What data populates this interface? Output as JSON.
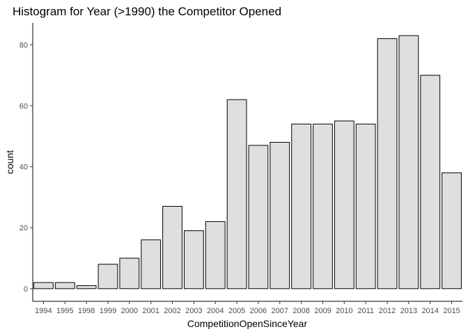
{
  "chart_data": {
    "type": "bar",
    "title": "Histogram for Year (>1990) the Competitor Opened",
    "xlabel": "CompetitionOpenSinceYear",
    "ylabel": "count",
    "categories": [
      "1994",
      "1995",
      "1998",
      "1999",
      "2000",
      "2001",
      "2002",
      "2003",
      "2004",
      "2005",
      "2006",
      "2007",
      "2008",
      "2009",
      "2010",
      "2011",
      "2012",
      "2013",
      "2014",
      "2015"
    ],
    "values": [
      2,
      2,
      1,
      8,
      10,
      16,
      27,
      19,
      22,
      62,
      47,
      48,
      54,
      54,
      55,
      54,
      82,
      83,
      70,
      38
    ],
    "yticks": [
      0,
      20,
      40,
      60,
      80
    ],
    "ylim": [
      -4.15,
      87.15
    ],
    "grid": false,
    "legend": "none",
    "colors": {
      "bar_fill": "#dfdfdf",
      "bar_stroke": "#000000"
    }
  }
}
